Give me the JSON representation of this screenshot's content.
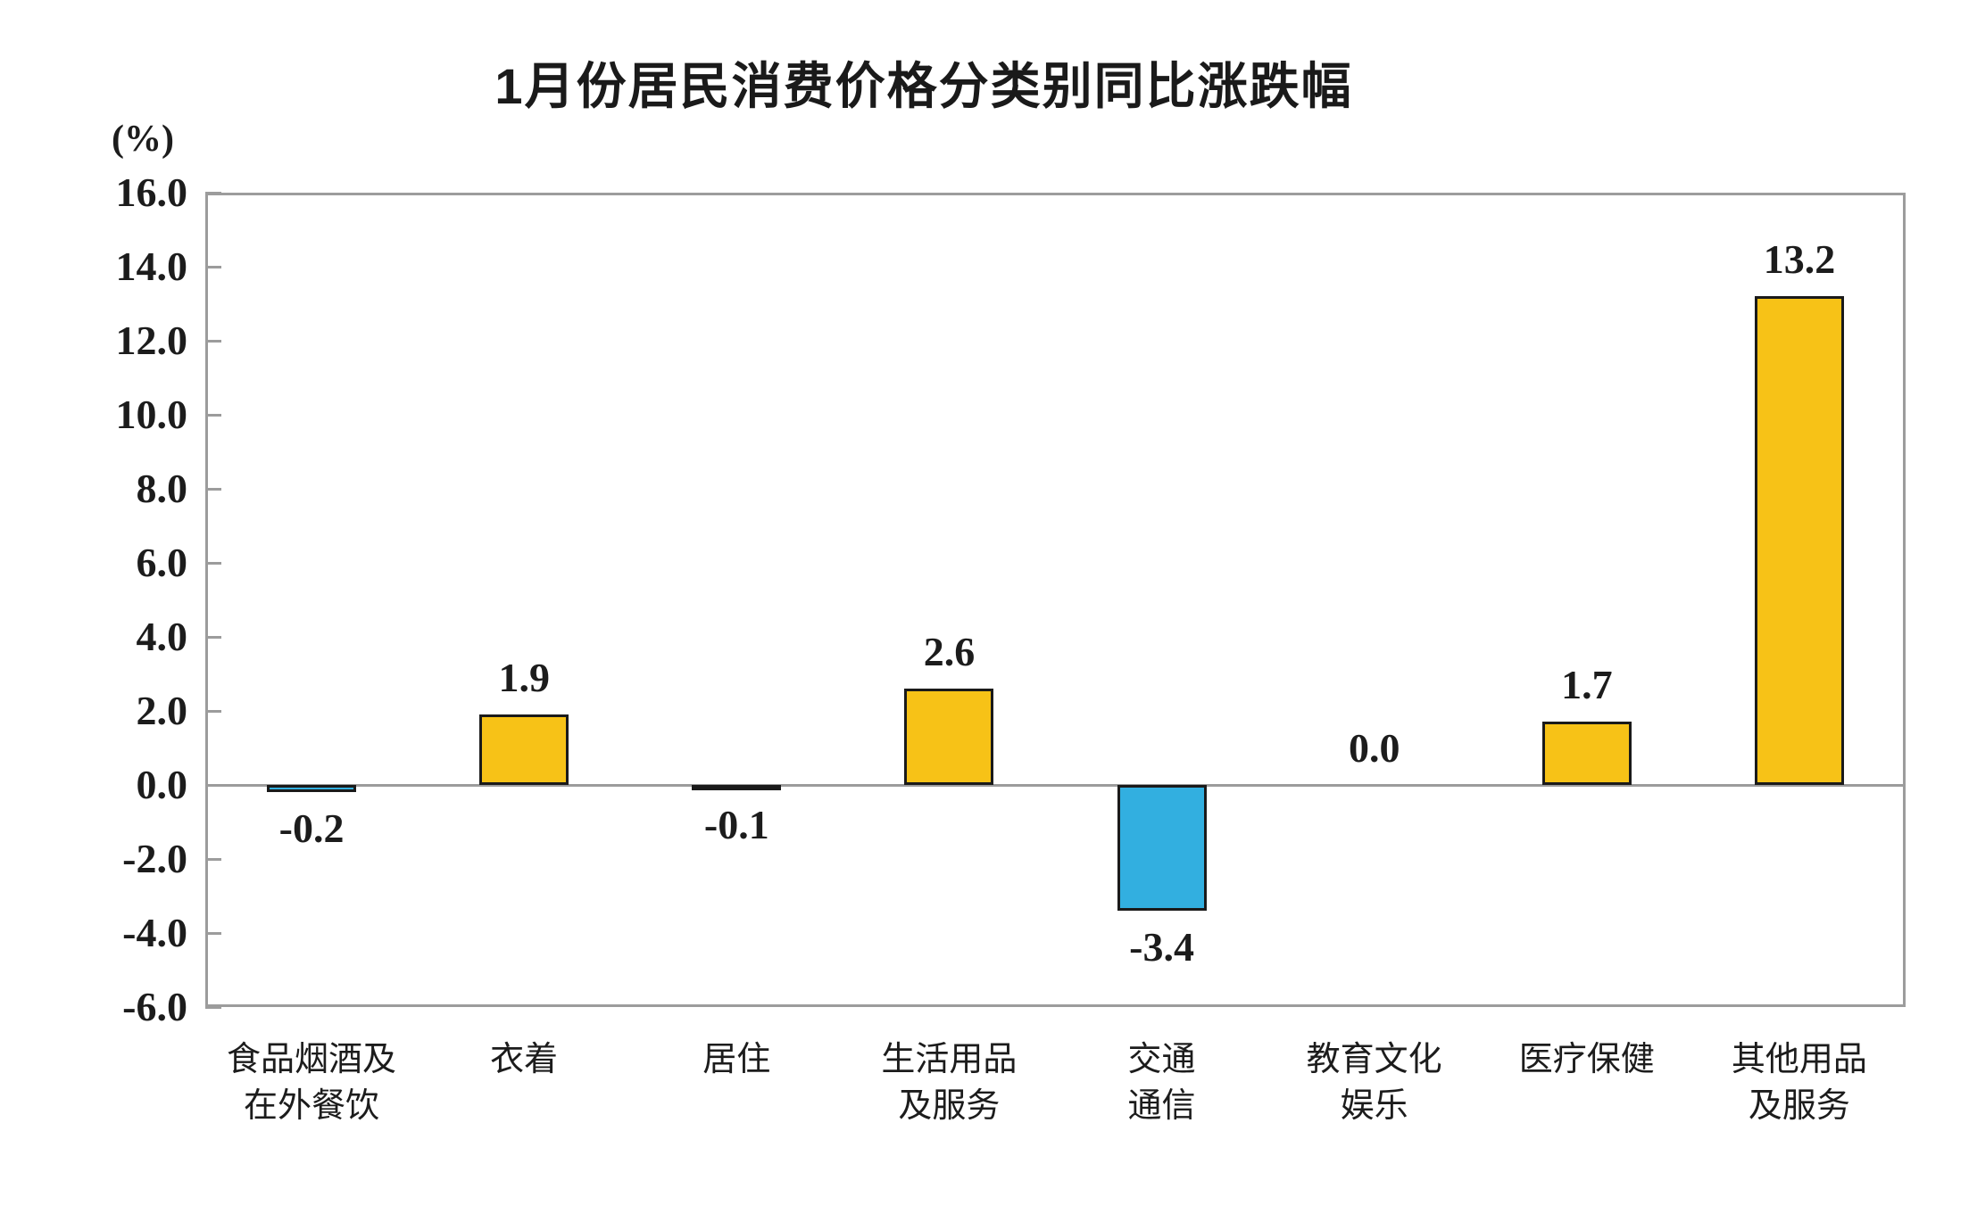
{
  "page": {
    "background": "#ffffff"
  },
  "chart_data": {
    "type": "bar",
    "title": "1月份居民消费价格分类别同比涨跌幅",
    "unit_label": "(%)",
    "categories": [
      "食品烟酒及\n在外餐饮",
      "衣着",
      "居住",
      "生活用品\n及服务",
      "交通\n通信",
      "教育文化\n娱乐",
      "医疗保健",
      "其他用品\n及服务"
    ],
    "values": [
      -0.2,
      1.9,
      -0.1,
      2.6,
      -3.4,
      0.0,
      1.7,
      13.2
    ],
    "bar_labels": [
      "-0.2",
      "1.9",
      "-0.1",
      "2.6",
      "-3.4",
      "0.0",
      "1.7",
      "13.2"
    ],
    "y_tick_labels": [
      "16.0",
      "14.0",
      "12.0",
      "10.0",
      "8.0",
      "6.0",
      "4.0",
      "2.0",
      "0.0",
      "-2.0",
      "-4.0",
      "-6.0"
    ],
    "y_tick_values": [
      16,
      14,
      12,
      10,
      8,
      6,
      4,
      2,
      0,
      -2,
      -4,
      -6
    ],
    "ylim": [
      -6.0,
      16.0
    ],
    "grid": false,
    "legend": "none",
    "xlabel": "",
    "ylabel": "(%)",
    "colors": {
      "positive_bar": "#F7C217",
      "negative_bar": "#32AFE0",
      "bar_border": "#1A1A1A",
      "axis": "#9C9C9C",
      "text": "#1C1C1C"
    }
  }
}
